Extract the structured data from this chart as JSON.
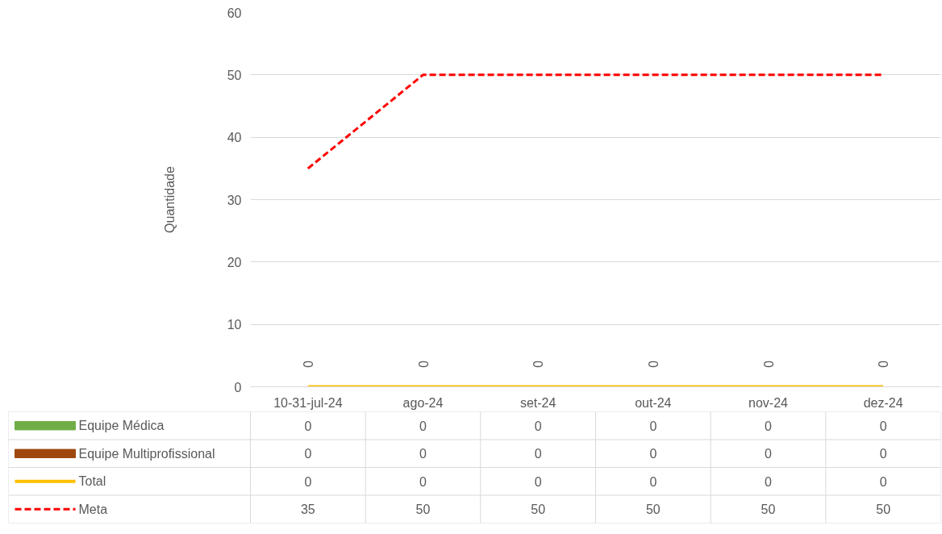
{
  "chart_data": {
    "type": "bar",
    "ylabel": "Quantidade",
    "categories": [
      "10-31-jul-24",
      "ago-24",
      "set-24",
      "out-24",
      "nov-24",
      "dez-24"
    ],
    "series": [
      {
        "name": "Equipe Médica",
        "color": "#70ad47",
        "values": [
          0,
          0,
          0,
          0,
          0,
          0
        ]
      },
      {
        "name": "Equipe Multiprofissional",
        "color": "#9e480e",
        "values": [
          0,
          0,
          0,
          0,
          0,
          0
        ]
      },
      {
        "name": "Total",
        "type": "line",
        "color": "#ffc000",
        "values": [
          0,
          0,
          0,
          0,
          0,
          0
        ]
      },
      {
        "name": "Meta",
        "type": "line",
        "color": "#ff0000",
        "line_style": "dashed",
        "values": [
          35,
          50,
          50,
          50,
          50,
          50
        ]
      }
    ],
    "annotations": [
      {
        "text": "0",
        "x": "10-31-jul-24",
        "y": 0
      },
      {
        "text": "0",
        "x": "ago-24",
        "y": 0
      },
      {
        "text": "0",
        "x": "set-24",
        "y": 0
      },
      {
        "text": "0",
        "x": "out-24",
        "y": 0
      },
      {
        "text": "0",
        "x": "nov-24",
        "y": 0
      },
      {
        "text": "0",
        "x": "dez-24",
        "y": 0
      }
    ],
    "ylim": [
      0,
      60
    ],
    "yticks": [
      0,
      10,
      20,
      30,
      40,
      50,
      60
    ],
    "grid": "y",
    "legend": "bottom",
    "data_labels": true
  }
}
